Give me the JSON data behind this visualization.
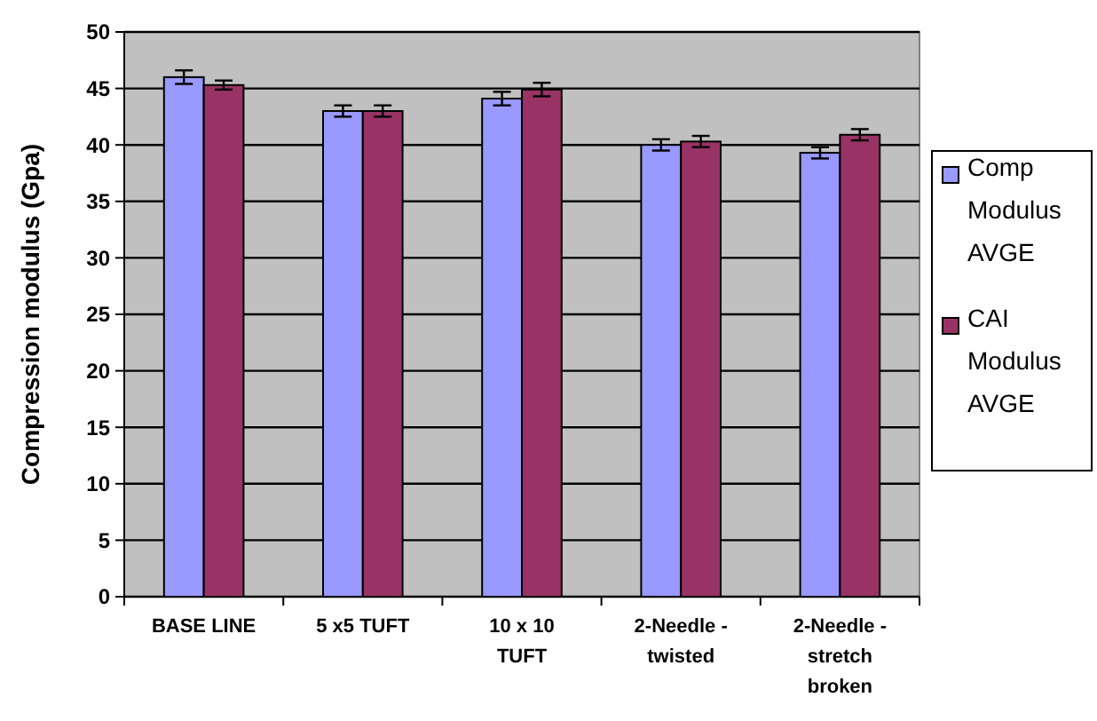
{
  "chart_data": {
    "type": "bar",
    "ylabel": "Compression modulus (Gpa)",
    "categories": [
      "BASE LINE",
      "5 x5 TUFT",
      "10 x 10 TUFT",
      "2-Needle - twisted",
      "2-Needle - stretch broken"
    ],
    "series": [
      {
        "name": "Comp Modulus AVGE",
        "color": "#9999ff",
        "values": [
          46.0,
          43.0,
          44.1,
          40.0,
          39.3
        ],
        "errors": [
          0.6,
          0.5,
          0.6,
          0.5,
          0.5
        ]
      },
      {
        "name": "CAI Modulus AVGE",
        "color": "#993366",
        "values": [
          45.3,
          43.0,
          44.9,
          40.3,
          40.9
        ],
        "errors": [
          0.4,
          0.5,
          0.6,
          0.5,
          0.5
        ]
      }
    ],
    "ylim": [
      0,
      50
    ],
    "yticks": [
      0,
      5,
      10,
      15,
      20,
      25,
      30,
      35,
      40,
      45,
      50
    ],
    "grid": "y",
    "legend": "right"
  }
}
